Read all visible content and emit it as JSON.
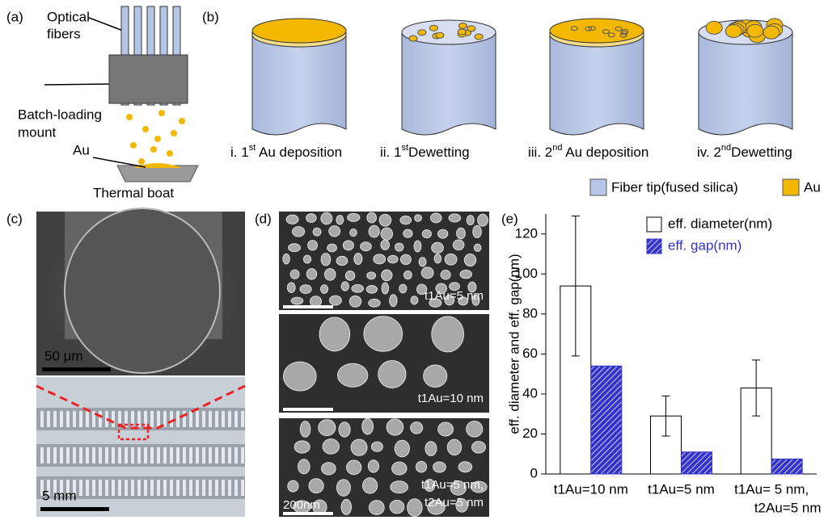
{
  "panel_a": {
    "label": "(a)",
    "fibers": [
      "Optical",
      "fibers"
    ],
    "mount": [
      "Batch-loading",
      "mount"
    ],
    "au": "Au",
    "boat": "Thermal boat"
  },
  "panel_b": {
    "label": "(b)",
    "steps": [
      {
        "pre": "i. 1",
        "sup": "st",
        "post": " Au deposition"
      },
      {
        "pre": "ii. 1",
        "sup": "st",
        "post": "Dewetting"
      },
      {
        "pre": "iii. 2",
        "sup": "nd",
        "post": " Au deposition"
      },
      {
        "pre": "iv. 2",
        "sup": "nd",
        "post": "Dewetting"
      }
    ],
    "legend": [
      "Fiber tip(fused silica)",
      "Au"
    ]
  },
  "panel_c": {
    "label": "(c)",
    "scale_top": "50 μm",
    "scale_bottom": "5 mm"
  },
  "panel_d": {
    "label": "(d)",
    "images": [
      [
        "t1Au=5 nm"
      ],
      [
        "t1Au=10 nm"
      ],
      [
        "t1Au=5 nm,",
        "t2Au=5 nm"
      ]
    ],
    "scale": "200nm"
  },
  "chart_data": {
    "type": "bar",
    "label": "(e)",
    "y_label": "eff. diameter and eff. gap(nm)",
    "categories": [
      [
        "t1Au=10 nm"
      ],
      [
        "t1Au=5 nm"
      ],
      [
        "t1Au= 5 nm,",
        "t2Au=5 nm"
      ]
    ],
    "series": [
      {
        "name": "eff. diameter(nm)",
        "color": "#ffffff",
        "values": [
          94,
          29,
          43
        ],
        "errors": [
          35,
          10,
          14
        ]
      },
      {
        "name": "eff. gap(nm)",
        "color": "#3333cc",
        "values": [
          54,
          11,
          7.5
        ]
      }
    ],
    "ylim": [
      0,
      130
    ],
    "yticks": [
      0,
      20,
      40,
      60,
      80,
      100,
      120
    ]
  }
}
